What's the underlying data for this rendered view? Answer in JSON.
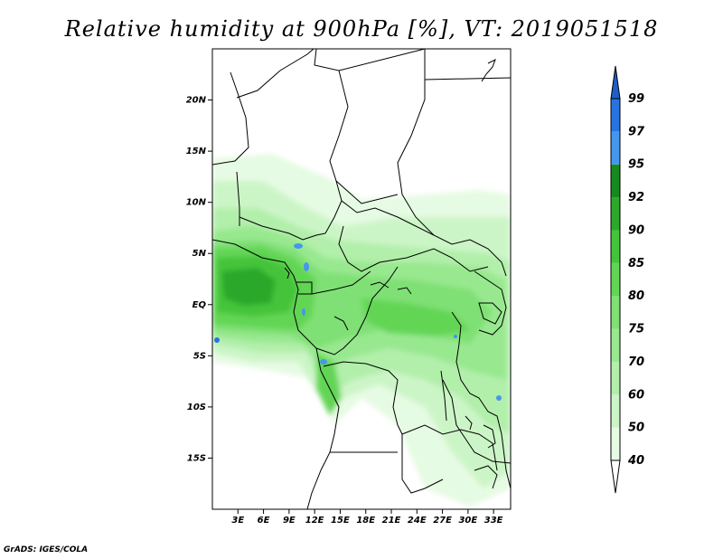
{
  "title": "Relative humidity at 900hPa [%], VT: 2019051518",
  "credit": "GrADS: IGES/COLA",
  "map": {
    "lon_range": [
      0,
      35
    ],
    "lat_range": [
      -20,
      25
    ],
    "lon_ticks": [
      "3E",
      "6E",
      "9E",
      "12E",
      "15E",
      "18E",
      "21E",
      "24E",
      "27E",
      "30E",
      "33E"
    ],
    "lat_ticks": [
      "20N",
      "15N",
      "10N",
      "5N",
      "EQ",
      "5S",
      "10S",
      "15S"
    ]
  },
  "colorbar": {
    "levels": [
      "40",
      "50",
      "60",
      "70",
      "75",
      "80",
      "85",
      "90",
      "92",
      "95",
      "97",
      "99"
    ],
    "colors": [
      "#ffffff",
      "#e6fbe3",
      "#ccf5c7",
      "#b2efab",
      "#98e88f",
      "#7fe074",
      "#62d555",
      "#44c43a",
      "#2ca82a",
      "#168a1e",
      "#4596ee",
      "#2773e0",
      "#1c5fc8"
    ]
  }
}
